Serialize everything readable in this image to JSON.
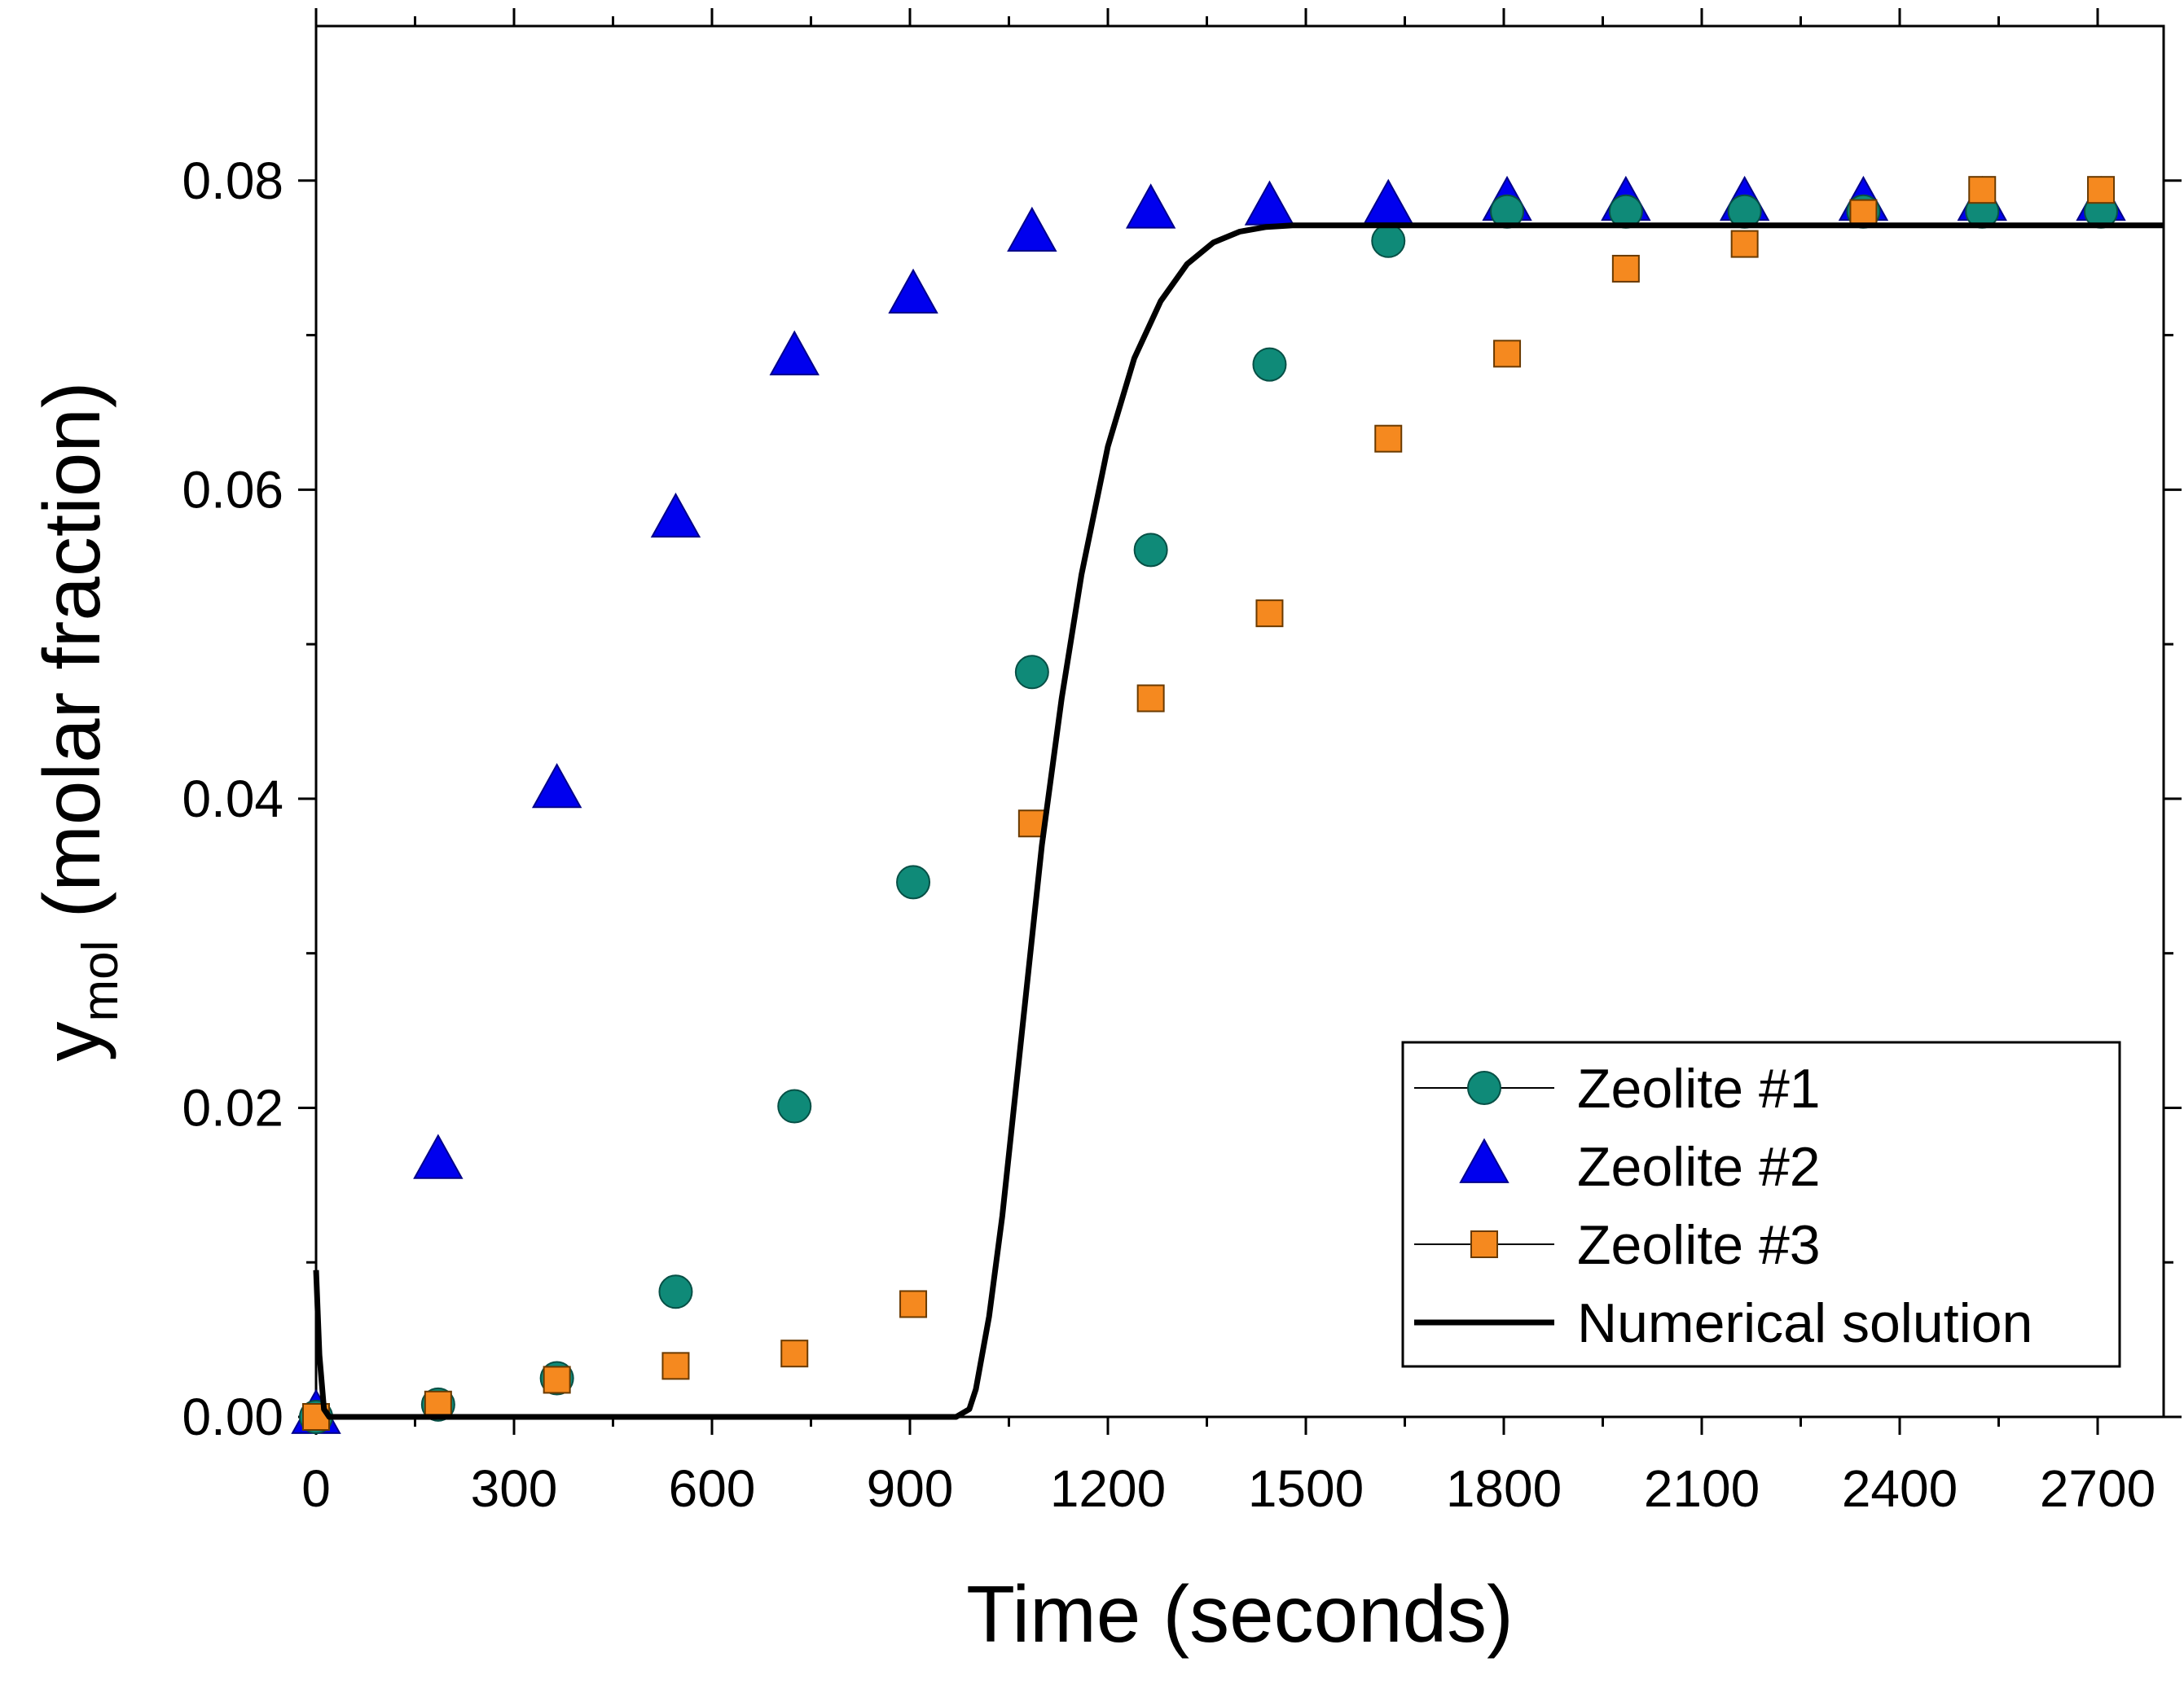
{
  "chart_data": {
    "type": "scatter",
    "title": "",
    "xlabel": "Time (seconds)",
    "ylabel_main": "y",
    "ylabel_sub": "mol",
    "ylabel_rest": " (molar fraction)",
    "xlim": [
      0,
      2800
    ],
    "ylim": [
      0,
      0.09
    ],
    "x_ticks": [
      0,
      300,
      600,
      900,
      1200,
      1500,
      1800,
      2100,
      2400,
      2700
    ],
    "y_ticks": [
      0.0,
      0.02,
      0.04,
      0.06,
      0.08
    ],
    "y_tick_labels": [
      "0.00",
      "0.02",
      "0.04",
      "0.06",
      "0.08"
    ],
    "grid": false,
    "legend_position": "bottom-right",
    "series": [
      {
        "name": "Zeolite #1",
        "marker": "circle",
        "color": "#0f8a78",
        "x": [
          0,
          185,
          365,
          545,
          725,
          905,
          1085,
          1265,
          1445,
          1625,
          1805,
          1985,
          2165,
          2345,
          2525,
          2705
        ],
        "y": [
          0.0,
          0.0008,
          0.0025,
          0.0081,
          0.0201,
          0.0346,
          0.0482,
          0.0561,
          0.0681,
          0.0761,
          0.078,
          0.078,
          0.078,
          0.078,
          0.078,
          0.078
        ]
      },
      {
        "name": "Zeolite #2",
        "marker": "triangle",
        "color": "#0000ee",
        "x": [
          0,
          185,
          365,
          545,
          725,
          905,
          1085,
          1265,
          1445,
          1625,
          1805,
          1985,
          2165,
          2345,
          2525,
          2705
        ],
        "y": [
          0.0,
          0.0165,
          0.0405,
          0.058,
          0.0685,
          0.0725,
          0.0765,
          0.078,
          0.0782,
          0.0783,
          0.0785,
          0.0785,
          0.0785,
          0.0785,
          0.0785,
          0.0785
        ]
      },
      {
        "name": "Zeolite #3",
        "marker": "square",
        "color": "#f5891f",
        "x": [
          0,
          185,
          365,
          545,
          725,
          905,
          1085,
          1265,
          1445,
          1625,
          1805,
          1985,
          2165,
          2345,
          2525,
          2705
        ],
        "y": [
          0.0,
          0.0008,
          0.0024,
          0.0033,
          0.0041,
          0.0073,
          0.0384,
          0.0465,
          0.052,
          0.0633,
          0.0688,
          0.0743,
          0.0759,
          0.0779,
          0.0794,
          0.0794
        ]
      },
      {
        "name": "Numerical solution",
        "marker": "line",
        "color": "#000000",
        "x": [
          0,
          5,
          12,
          20,
          400,
          800,
          970,
          990,
          1000,
          1020,
          1040,
          1060,
          1080,
          1100,
          1130,
          1160,
          1200,
          1240,
          1280,
          1320,
          1360,
          1400,
          1440,
          1480,
          1500,
          2800
        ],
        "y": [
          0.0095,
          0.004,
          0.0005,
          0.0,
          0.0,
          0.0,
          0.0,
          0.0005,
          0.0018,
          0.0065,
          0.013,
          0.021,
          0.029,
          0.037,
          0.0465,
          0.0545,
          0.0628,
          0.0685,
          0.0722,
          0.0746,
          0.076,
          0.0767,
          0.077,
          0.0771,
          0.0771,
          0.0771
        ]
      }
    ]
  }
}
